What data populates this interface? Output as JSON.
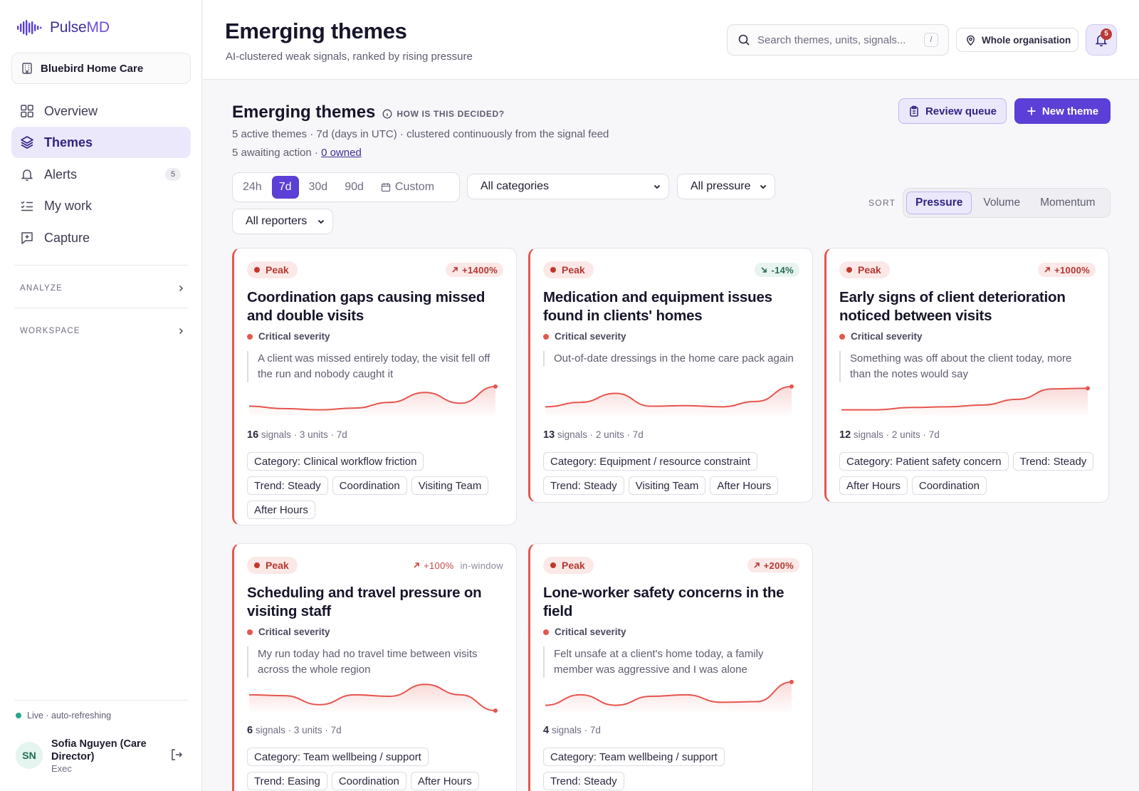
{
  "app": {
    "name_a": "Pulse",
    "name_b": "MD"
  },
  "org": {
    "name": "Bluebird Home Care"
  },
  "sidebar": {
    "items": [
      {
        "label": "Overview",
        "icon": "grid-icon"
      },
      {
        "label": "Themes",
        "icon": "layers-icon"
      },
      {
        "label": "Alerts",
        "icon": "bell-icon",
        "count": "5"
      },
      {
        "label": "My work",
        "icon": "checklist-icon"
      },
      {
        "label": "Capture",
        "icon": "message-plus-icon"
      }
    ],
    "sections": [
      "ANALYZE",
      "WORKSPACE"
    ],
    "live": "Live · auto-refreshing",
    "user": {
      "initials": "SN",
      "name": "Sofia Nguyen (Care Director)",
      "role": "Exec"
    }
  },
  "header": {
    "title": "Emerging themes",
    "subtitle": "AI-clustered weak signals, ranked by rising pressure",
    "search_placeholder": "Search themes, units, signals...",
    "search_shortcut": "/",
    "scope": "Whole organisation",
    "notifications": "5"
  },
  "main": {
    "title": "Emerging themes",
    "how": "HOW IS THIS DECIDED?",
    "meta1": "5 active themes · 7d (days in UTC) · clustered continuously from the signal feed",
    "meta2_prefix": "5 awaiting action · ",
    "meta2_link": "0 owned",
    "review_button": "Review queue",
    "new_button": "New theme",
    "ranges": [
      "24h",
      "7d",
      "30d",
      "90d",
      "Custom"
    ],
    "active_range": "7d",
    "filters": {
      "category": "All categories",
      "pressure": "All pressure",
      "reporters": "All reporters"
    },
    "sort_label": "SORT",
    "sort_options": [
      "Pressure",
      "Volume",
      "Momentum"
    ],
    "active_sort": "Pressure"
  },
  "colors": {
    "accent": "#5b3fd6",
    "critical": "#e5564f",
    "peak_bg": "#fbe8e7"
  },
  "cards": [
    {
      "status": "Peak",
      "trend": "+1400%",
      "trend_dir": "up",
      "trend_note": "",
      "title": "Coordination gaps causing missed and double visits",
      "severity": "Critical severity",
      "quote": "A client was missed entirely today, the visit fell off the run and nobody caught it",
      "signals": "16",
      "stats": "signals · 3 units · 7d",
      "tags": [
        "Category: Clinical workflow friction",
        "Trend: Steady",
        "Coordination",
        "Visiting Team",
        "After Hours"
      ],
      "spark": [
        0.32,
        0.24,
        0.2,
        0.26,
        0.45,
        0.78,
        0.42,
        0.98
      ]
    },
    {
      "status": "Peak",
      "trend": "-14%",
      "trend_dir": "down",
      "trend_note": "",
      "title": "Medication and equipment issues found in clients' homes",
      "severity": "Critical severity",
      "quote": "Out-of-date dressings in the home care pack again",
      "signals": "13",
      "stats": "signals · 2 units · 7d",
      "tags": [
        "Category: Equipment / resource constraint",
        "Trend: Steady",
        "Visiting Team",
        "After Hours"
      ],
      "spark": [
        0.3,
        0.45,
        0.75,
        0.32,
        0.34,
        0.3,
        0.48,
        0.98
      ]
    },
    {
      "status": "Peak",
      "trend": "+1000%",
      "trend_dir": "up",
      "trend_note": "",
      "title": "Early signs of client deterioration noticed between visits",
      "severity": "Critical severity",
      "quote": "Something was off about the client today, more than the notes would say",
      "signals": "12",
      "stats": "signals · 2 units · 7d",
      "tags": [
        "Category: Patient safety concern",
        "Trend: Steady",
        "After Hours",
        "Coordination"
      ],
      "spark": [
        0.2,
        0.2,
        0.28,
        0.3,
        0.36,
        0.55,
        0.9,
        0.92
      ]
    },
    {
      "status": "Peak",
      "trend": "+100%",
      "trend_dir": "plain",
      "trend_note": "in-window",
      "title": "Scheduling and travel pressure on visiting staff",
      "severity": "Critical severity",
      "quote": "My run today had no travel time between visits across the whole region",
      "signals": "6",
      "stats": "signals · 3 units · 7d",
      "tags": [
        "Category: Team wellbeing / support",
        "Trend: Easing",
        "Coordination",
        "After Hours"
      ],
      "spark": [
        0.55,
        0.52,
        0.22,
        0.55,
        0.5,
        0.9,
        0.55,
        0.02
      ]
    },
    {
      "status": "Peak",
      "trend": "+200%",
      "trend_dir": "up",
      "trend_note": "",
      "title": "Lone-worker safety concerns in the field",
      "severity": "Critical severity",
      "quote": "Felt unsafe at a client's home today, a family member was aggressive and I was alone",
      "signals": "4",
      "stats": "signals · 7d",
      "tags": [
        "Category: Team wellbeing / support",
        "Trend: Steady"
      ],
      "spark": [
        0.2,
        0.55,
        0.2,
        0.5,
        0.55,
        0.3,
        0.32,
        0.98
      ]
    }
  ]
}
